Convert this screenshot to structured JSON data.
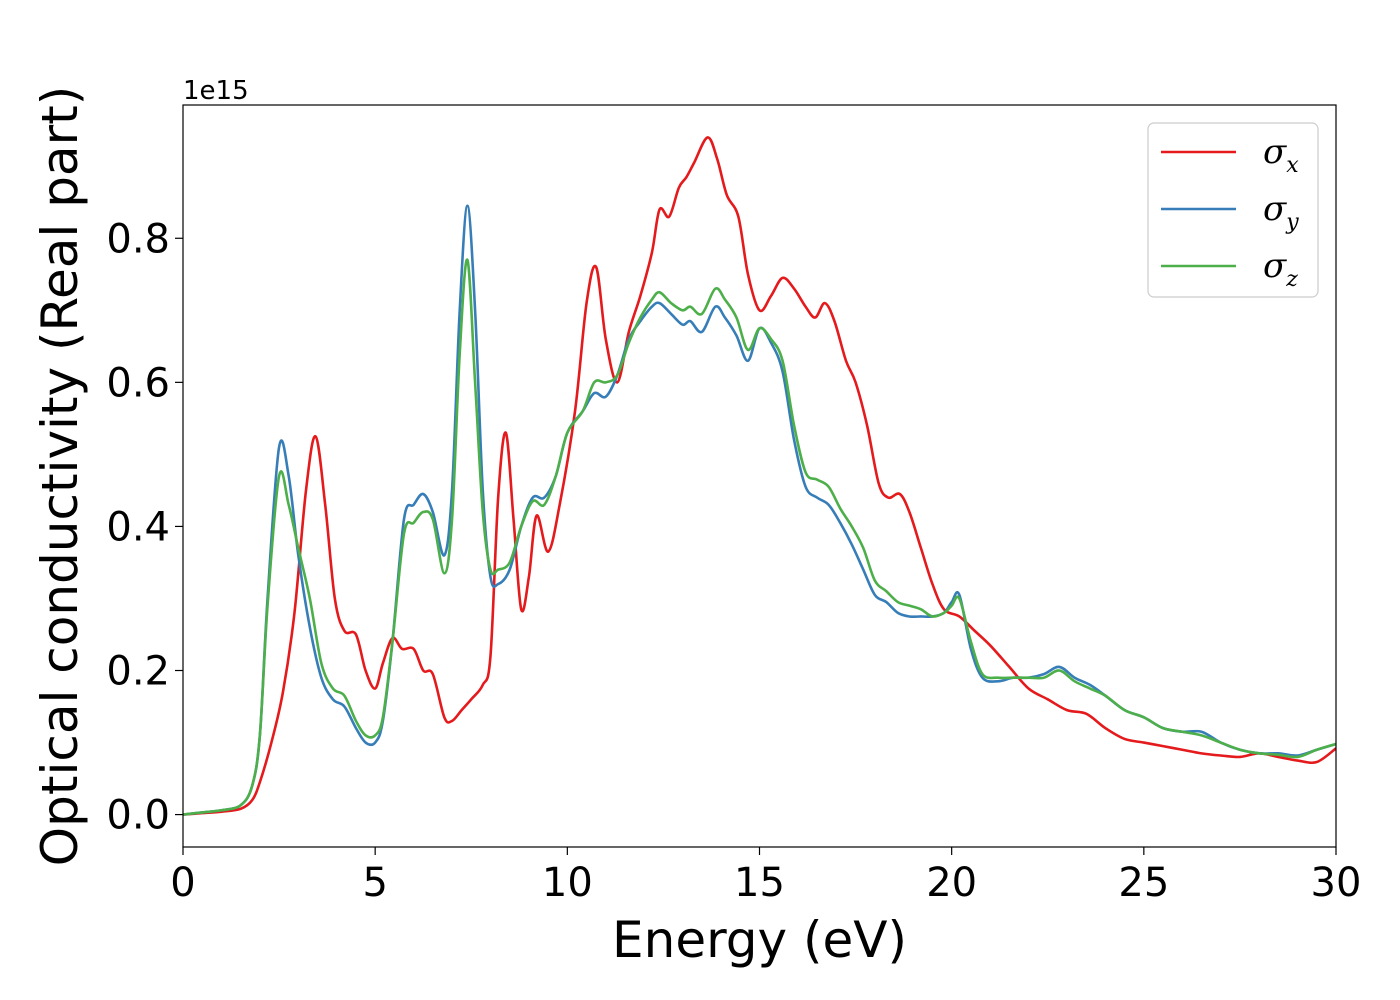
{
  "chart_data": {
    "type": "line",
    "xlabel": "Energy (eV)",
    "ylabel": "Optical conductivity (Real part)",
    "offset_text": "1e15",
    "xlim": [
      0,
      30
    ],
    "ylim": [
      -0.045,
      0.985
    ],
    "y_scale_factor": 1000000000000000.0,
    "xticks": [
      0,
      5,
      10,
      15,
      20,
      25,
      30
    ],
    "xtick_labels": [
      "0",
      "5",
      "10",
      "15",
      "20",
      "25",
      "30"
    ],
    "yticks": [
      0.0,
      0.2,
      0.4,
      0.6,
      0.8
    ],
    "ytick_labels": [
      "0.0",
      "0.2",
      "0.4",
      "0.6",
      "0.8"
    ],
    "grid": false,
    "legend_position": "top-right",
    "series": [
      {
        "name": "σx",
        "symbol": "σ",
        "subscript": "x",
        "color": "#e41a1c",
        "x": [
          0,
          0.5,
          1.0,
          1.5,
          1.8,
          2.0,
          2.3,
          2.6,
          2.9,
          3.2,
          3.45,
          3.7,
          3.95,
          4.2,
          4.5,
          4.75,
          5.0,
          5.2,
          5.45,
          5.7,
          6.0,
          6.25,
          6.5,
          6.8,
          7.0,
          7.25,
          7.5,
          7.8,
          8.0,
          8.2,
          8.4,
          8.6,
          8.8,
          9.0,
          9.2,
          9.5,
          9.8,
          10.2,
          10.5,
          10.75,
          11.0,
          11.3,
          11.6,
          11.9,
          12.2,
          12.4,
          12.65,
          12.9,
          13.1,
          13.3,
          13.65,
          13.9,
          14.15,
          14.45,
          14.7,
          15.0,
          15.3,
          15.6,
          15.9,
          16.2,
          16.45,
          16.7,
          16.95,
          17.25,
          17.5,
          17.8,
          18.1,
          18.35,
          18.65,
          18.9,
          19.2,
          19.5,
          19.8,
          20.2,
          20.6,
          21.0,
          21.5,
          22.0,
          22.5,
          23.0,
          23.5,
          24.0,
          24.5,
          25.0,
          25.5,
          26.0,
          26.5,
          27.0,
          27.5,
          28.0,
          28.5,
          29.0,
          29.5,
          30.0
        ],
        "y": [
          0.0,
          0.002,
          0.004,
          0.008,
          0.02,
          0.045,
          0.1,
          0.17,
          0.28,
          0.45,
          0.525,
          0.43,
          0.3,
          0.255,
          0.25,
          0.2,
          0.175,
          0.21,
          0.245,
          0.23,
          0.23,
          0.2,
          0.195,
          0.135,
          0.13,
          0.145,
          0.16,
          0.18,
          0.22,
          0.44,
          0.53,
          0.41,
          0.285,
          0.33,
          0.415,
          0.365,
          0.43,
          0.56,
          0.71,
          0.76,
          0.66,
          0.6,
          0.67,
          0.72,
          0.78,
          0.84,
          0.83,
          0.87,
          0.885,
          0.905,
          0.94,
          0.91,
          0.86,
          0.83,
          0.75,
          0.7,
          0.72,
          0.745,
          0.73,
          0.705,
          0.69,
          0.71,
          0.685,
          0.63,
          0.6,
          0.54,
          0.46,
          0.44,
          0.445,
          0.42,
          0.37,
          0.32,
          0.285,
          0.275,
          0.255,
          0.235,
          0.205,
          0.175,
          0.16,
          0.145,
          0.14,
          0.12,
          0.105,
          0.1,
          0.095,
          0.09,
          0.085,
          0.082,
          0.08,
          0.085,
          0.08,
          0.075,
          0.073,
          0.092
        ]
      },
      {
        "name": "σy",
        "symbol": "σ",
        "subscript": "y",
        "color": "#377eb8",
        "x": [
          0,
          0.5,
          1.0,
          1.5,
          1.8,
          2.0,
          2.2,
          2.5,
          2.75,
          3.0,
          3.3,
          3.6,
          3.9,
          4.2,
          4.5,
          4.75,
          5.0,
          5.2,
          5.45,
          5.75,
          6.0,
          6.25,
          6.5,
          6.8,
          7.0,
          7.2,
          7.4,
          7.6,
          7.8,
          8.0,
          8.2,
          8.5,
          8.8,
          9.1,
          9.4,
          9.7,
          10.0,
          10.4,
          10.7,
          11.0,
          11.3,
          11.6,
          11.9,
          12.2,
          12.4,
          12.7,
          13.0,
          13.2,
          13.5,
          13.85,
          14.1,
          14.4,
          14.7,
          15.0,
          15.3,
          15.6,
          15.9,
          16.2,
          16.5,
          16.8,
          17.1,
          17.4,
          17.7,
          18.0,
          18.3,
          18.6,
          18.9,
          19.2,
          19.5,
          19.8,
          20.0,
          20.2,
          20.5,
          20.8,
          21.2,
          21.6,
          22.0,
          22.4,
          22.8,
          23.2,
          23.6,
          24.0,
          24.5,
          25.0,
          25.5,
          26.0,
          26.5,
          27.0,
          27.5,
          28.0,
          28.5,
          29.0,
          29.5,
          30.0
        ],
        "y": [
          0.0,
          0.003,
          0.006,
          0.013,
          0.04,
          0.11,
          0.3,
          0.51,
          0.47,
          0.36,
          0.26,
          0.19,
          0.16,
          0.15,
          0.12,
          0.1,
          0.1,
          0.13,
          0.24,
          0.41,
          0.43,
          0.445,
          0.42,
          0.36,
          0.45,
          0.7,
          0.845,
          0.7,
          0.45,
          0.33,
          0.32,
          0.34,
          0.4,
          0.44,
          0.44,
          0.47,
          0.53,
          0.56,
          0.585,
          0.58,
          0.61,
          0.66,
          0.685,
          0.705,
          0.71,
          0.695,
          0.68,
          0.685,
          0.67,
          0.705,
          0.69,
          0.665,
          0.63,
          0.675,
          0.655,
          0.615,
          0.52,
          0.455,
          0.44,
          0.43,
          0.405,
          0.375,
          0.34,
          0.305,
          0.295,
          0.28,
          0.275,
          0.275,
          0.275,
          0.28,
          0.295,
          0.305,
          0.23,
          0.19,
          0.185,
          0.19,
          0.19,
          0.195,
          0.205,
          0.19,
          0.18,
          0.165,
          0.145,
          0.135,
          0.12,
          0.115,
          0.115,
          0.1,
          0.09,
          0.085,
          0.085,
          0.082,
          0.09,
          0.098
        ]
      },
      {
        "name": "σz",
        "symbol": "σ",
        "subscript": "z",
        "color": "#4daf4a",
        "x": [
          0,
          0.5,
          1.0,
          1.5,
          1.8,
          2.0,
          2.2,
          2.5,
          2.75,
          3.0,
          3.3,
          3.6,
          3.9,
          4.2,
          4.5,
          4.75,
          5.0,
          5.2,
          5.45,
          5.75,
          6.0,
          6.25,
          6.5,
          6.8,
          7.0,
          7.2,
          7.4,
          7.6,
          7.8,
          8.0,
          8.2,
          8.5,
          8.8,
          9.1,
          9.4,
          9.7,
          10.0,
          10.4,
          10.7,
          11.0,
          11.3,
          11.6,
          11.9,
          12.2,
          12.4,
          12.7,
          13.0,
          13.2,
          13.5,
          13.85,
          14.1,
          14.4,
          14.7,
          15.0,
          15.3,
          15.6,
          15.9,
          16.2,
          16.5,
          16.8,
          17.1,
          17.4,
          17.7,
          18.0,
          18.3,
          18.6,
          18.9,
          19.2,
          19.5,
          19.8,
          20.0,
          20.2,
          20.5,
          20.8,
          21.2,
          21.6,
          22.0,
          22.4,
          22.8,
          23.2,
          23.6,
          24.0,
          24.5,
          25.0,
          25.5,
          26.0,
          26.5,
          27.0,
          27.5,
          28.0,
          28.5,
          29.0,
          29.5,
          30.0
        ],
        "y": [
          0.0,
          0.003,
          0.006,
          0.013,
          0.04,
          0.11,
          0.29,
          0.47,
          0.43,
          0.37,
          0.3,
          0.21,
          0.175,
          0.165,
          0.13,
          0.11,
          0.11,
          0.135,
          0.24,
          0.39,
          0.405,
          0.42,
          0.41,
          0.335,
          0.41,
          0.64,
          0.77,
          0.6,
          0.42,
          0.34,
          0.34,
          0.35,
          0.4,
          0.435,
          0.43,
          0.47,
          0.53,
          0.56,
          0.6,
          0.6,
          0.61,
          0.655,
          0.69,
          0.715,
          0.725,
          0.71,
          0.7,
          0.705,
          0.695,
          0.73,
          0.715,
          0.69,
          0.645,
          0.675,
          0.66,
          0.63,
          0.54,
          0.475,
          0.465,
          0.455,
          0.425,
          0.4,
          0.37,
          0.325,
          0.31,
          0.295,
          0.29,
          0.285,
          0.275,
          0.28,
          0.29,
          0.3,
          0.24,
          0.195,
          0.19,
          0.19,
          0.19,
          0.19,
          0.2,
          0.185,
          0.175,
          0.165,
          0.145,
          0.135,
          0.12,
          0.115,
          0.11,
          0.1,
          0.09,
          0.085,
          0.083,
          0.08,
          0.09,
          0.098
        ]
      }
    ]
  }
}
